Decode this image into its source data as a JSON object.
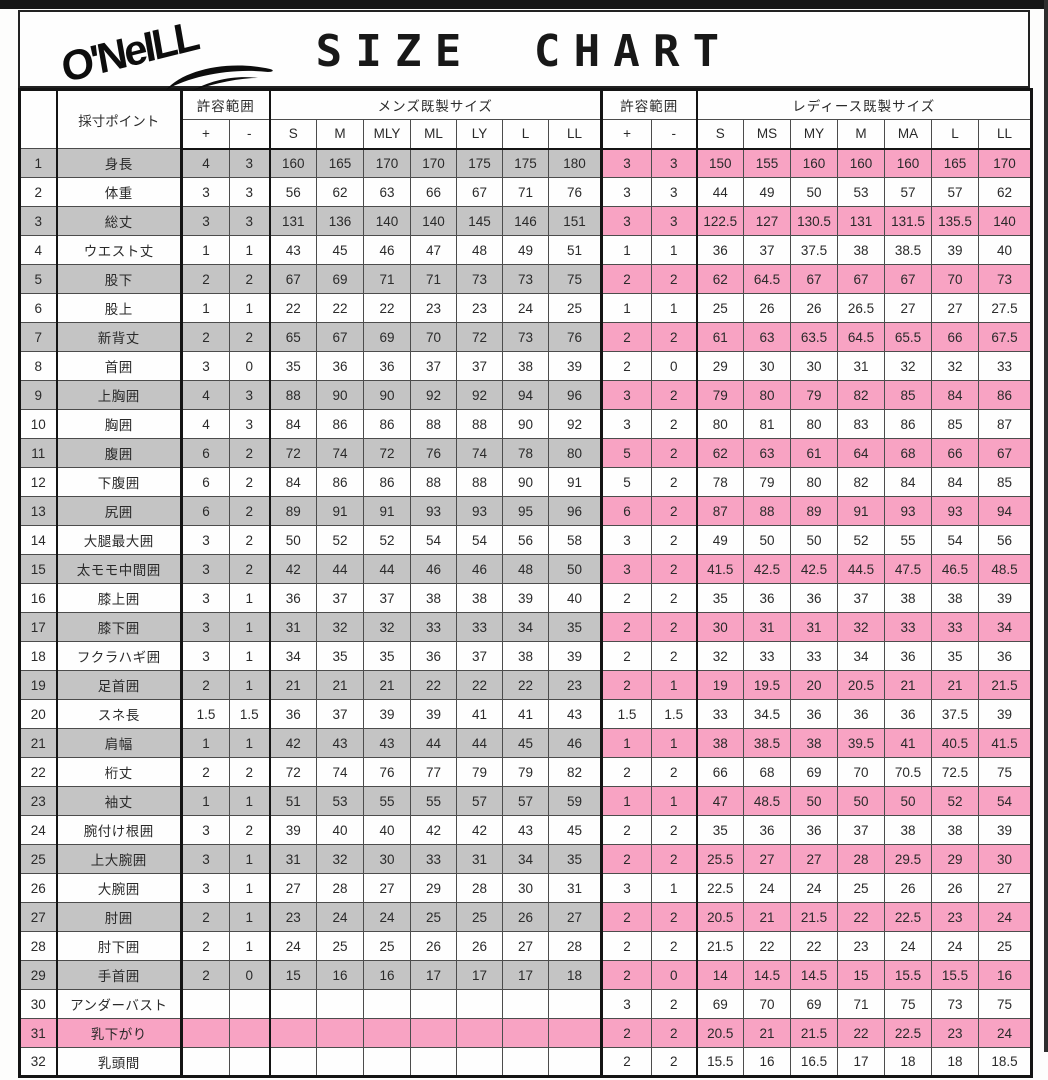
{
  "header": {
    "brand": "O'NeILL",
    "title": "SIZE CHART"
  },
  "table": {
    "headers": {
      "measure_point": "採寸ポイント",
      "tolerance": "許容範囲",
      "mens_group": "メンズ既製サイズ",
      "ladies_group": "レディース既製サイズ",
      "plus": "+",
      "minus": "-",
      "mens_sizes": [
        "S",
        "M",
        "MLY",
        "ML",
        "LY",
        "L",
        "LL"
      ],
      "ladies_sizes": [
        "S",
        "MS",
        "MY",
        "M",
        "MA",
        "L",
        "LL"
      ]
    },
    "rows": [
      {
        "no": "1",
        "name": "身長",
        "mt": [
          "4",
          "3"
        ],
        "m": [
          "160",
          "165",
          "170",
          "170",
          "175",
          "175",
          "180"
        ],
        "lt": [
          "3",
          "3"
        ],
        "l": [
          "150",
          "155",
          "160",
          "160",
          "160",
          "165",
          "170"
        ],
        "bg": "s"
      },
      {
        "no": "2",
        "name": "体重",
        "mt": [
          "3",
          "3"
        ],
        "m": [
          "56",
          "62",
          "63",
          "66",
          "67",
          "71",
          "76"
        ],
        "lt": [
          "3",
          "3"
        ],
        "l": [
          "44",
          "49",
          "50",
          "53",
          "57",
          "57",
          "62"
        ],
        "bg": "w"
      },
      {
        "no": "3",
        "name": "総丈",
        "mt": [
          "3",
          "3"
        ],
        "m": [
          "131",
          "136",
          "140",
          "140",
          "145",
          "146",
          "151"
        ],
        "lt": [
          "3",
          "3"
        ],
        "l": [
          "122.5",
          "127",
          "130.5",
          "131",
          "131.5",
          "135.5",
          "140"
        ],
        "bg": "s"
      },
      {
        "no": "4",
        "name": "ウエスト丈",
        "mt": [
          "1",
          "1"
        ],
        "m": [
          "43",
          "45",
          "46",
          "47",
          "48",
          "49",
          "51"
        ],
        "lt": [
          "1",
          "1"
        ],
        "l": [
          "36",
          "37",
          "37.5",
          "38",
          "38.5",
          "39",
          "40"
        ],
        "bg": "w"
      },
      {
        "no": "5",
        "name": "股下",
        "mt": [
          "2",
          "2"
        ],
        "m": [
          "67",
          "69",
          "71",
          "71",
          "73",
          "73",
          "75"
        ],
        "lt": [
          "2",
          "2"
        ],
        "l": [
          "62",
          "64.5",
          "67",
          "67",
          "67",
          "70",
          "73"
        ],
        "bg": "s"
      },
      {
        "no": "6",
        "name": "股上",
        "mt": [
          "1",
          "1"
        ],
        "m": [
          "22",
          "22",
          "22",
          "23",
          "23",
          "24",
          "25"
        ],
        "lt": [
          "1",
          "1"
        ],
        "l": [
          "25",
          "26",
          "26",
          "26.5",
          "27",
          "27",
          "27.5"
        ],
        "bg": "w"
      },
      {
        "no": "7",
        "name": "新背丈",
        "mt": [
          "2",
          "2"
        ],
        "m": [
          "65",
          "67",
          "69",
          "70",
          "72",
          "73",
          "76"
        ],
        "lt": [
          "2",
          "2"
        ],
        "l": [
          "61",
          "63",
          "63.5",
          "64.5",
          "65.5",
          "66",
          "67.5"
        ],
        "bg": "s"
      },
      {
        "no": "8",
        "name": "首囲",
        "mt": [
          "3",
          "0"
        ],
        "m": [
          "35",
          "36",
          "36",
          "37",
          "37",
          "38",
          "39"
        ],
        "lt": [
          "2",
          "0"
        ],
        "l": [
          "29",
          "30",
          "30",
          "31",
          "32",
          "32",
          "33"
        ],
        "bg": "w"
      },
      {
        "no": "9",
        "name": "上胸囲",
        "mt": [
          "4",
          "3"
        ],
        "m": [
          "88",
          "90",
          "90",
          "92",
          "92",
          "94",
          "96"
        ],
        "lt": [
          "3",
          "2"
        ],
        "l": [
          "79",
          "80",
          "79",
          "82",
          "85",
          "84",
          "86"
        ],
        "bg": "s"
      },
      {
        "no": "10",
        "name": "胸囲",
        "mt": [
          "4",
          "3"
        ],
        "m": [
          "84",
          "86",
          "86",
          "88",
          "88",
          "90",
          "92"
        ],
        "lt": [
          "3",
          "2"
        ],
        "l": [
          "80",
          "81",
          "80",
          "83",
          "86",
          "85",
          "87"
        ],
        "bg": "w"
      },
      {
        "no": "11",
        "name": "腹囲",
        "mt": [
          "6",
          "2"
        ],
        "m": [
          "72",
          "74",
          "72",
          "76",
          "74",
          "78",
          "80"
        ],
        "lt": [
          "5",
          "2"
        ],
        "l": [
          "62",
          "63",
          "61",
          "64",
          "68",
          "66",
          "67"
        ],
        "bg": "s"
      },
      {
        "no": "12",
        "name": "下腹囲",
        "mt": [
          "6",
          "2"
        ],
        "m": [
          "84",
          "86",
          "86",
          "88",
          "88",
          "90",
          "91"
        ],
        "lt": [
          "5",
          "2"
        ],
        "l": [
          "78",
          "79",
          "80",
          "82",
          "84",
          "84",
          "85"
        ],
        "bg": "w"
      },
      {
        "no": "13",
        "name": "尻囲",
        "mt": [
          "6",
          "2"
        ],
        "m": [
          "89",
          "91",
          "91",
          "93",
          "93",
          "95",
          "96"
        ],
        "lt": [
          "6",
          "2"
        ],
        "l": [
          "87",
          "88",
          "89",
          "91",
          "93",
          "93",
          "94"
        ],
        "bg": "s"
      },
      {
        "no": "14",
        "name": "大腿最大囲",
        "mt": [
          "3",
          "2"
        ],
        "m": [
          "50",
          "52",
          "52",
          "54",
          "54",
          "56",
          "58"
        ],
        "lt": [
          "3",
          "2"
        ],
        "l": [
          "49",
          "50",
          "50",
          "52",
          "55",
          "54",
          "56"
        ],
        "bg": "w"
      },
      {
        "no": "15",
        "name": "太モモ中間囲",
        "mt": [
          "3",
          "2"
        ],
        "m": [
          "42",
          "44",
          "44",
          "46",
          "46",
          "48",
          "50"
        ],
        "lt": [
          "3",
          "2"
        ],
        "l": [
          "41.5",
          "42.5",
          "42.5",
          "44.5",
          "47.5",
          "46.5",
          "48.5"
        ],
        "bg": "s"
      },
      {
        "no": "16",
        "name": "膝上囲",
        "mt": [
          "3",
          "1"
        ],
        "m": [
          "36",
          "37",
          "37",
          "38",
          "38",
          "39",
          "40"
        ],
        "lt": [
          "2",
          "2"
        ],
        "l": [
          "35",
          "36",
          "36",
          "37",
          "38",
          "38",
          "39"
        ],
        "bg": "w"
      },
      {
        "no": "17",
        "name": "膝下囲",
        "mt": [
          "3",
          "1"
        ],
        "m": [
          "31",
          "32",
          "32",
          "33",
          "33",
          "34",
          "35"
        ],
        "lt": [
          "2",
          "2"
        ],
        "l": [
          "30",
          "31",
          "31",
          "32",
          "33",
          "33",
          "34"
        ],
        "bg": "s"
      },
      {
        "no": "18",
        "name": "フクラハギ囲",
        "mt": [
          "3",
          "1"
        ],
        "m": [
          "34",
          "35",
          "35",
          "36",
          "37",
          "38",
          "39"
        ],
        "lt": [
          "2",
          "2"
        ],
        "l": [
          "32",
          "33",
          "33",
          "34",
          "36",
          "35",
          "36"
        ],
        "bg": "w"
      },
      {
        "no": "19",
        "name": "足首囲",
        "mt": [
          "2",
          "1"
        ],
        "m": [
          "21",
          "21",
          "21",
          "22",
          "22",
          "22",
          "23"
        ],
        "lt": [
          "2",
          "1"
        ],
        "l": [
          "19",
          "19.5",
          "20",
          "20.5",
          "21",
          "21",
          "21.5"
        ],
        "bg": "s"
      },
      {
        "no": "20",
        "name": "スネ長",
        "mt": [
          "1.5",
          "1.5"
        ],
        "m": [
          "36",
          "37",
          "39",
          "39",
          "41",
          "41",
          "43"
        ],
        "lt": [
          "1.5",
          "1.5"
        ],
        "l": [
          "33",
          "34.5",
          "36",
          "36",
          "36",
          "37.5",
          "39"
        ],
        "bg": "w"
      },
      {
        "no": "21",
        "name": "肩幅",
        "mt": [
          "1",
          "1"
        ],
        "m": [
          "42",
          "43",
          "43",
          "44",
          "44",
          "45",
          "46"
        ],
        "lt": [
          "1",
          "1"
        ],
        "l": [
          "38",
          "38.5",
          "38",
          "39.5",
          "41",
          "40.5",
          "41.5"
        ],
        "bg": "s"
      },
      {
        "no": "22",
        "name": "桁丈",
        "mt": [
          "2",
          "2"
        ],
        "m": [
          "72",
          "74",
          "76",
          "77",
          "79",
          "79",
          "82"
        ],
        "lt": [
          "2",
          "2"
        ],
        "l": [
          "66",
          "68",
          "69",
          "70",
          "70.5",
          "72.5",
          "75"
        ],
        "bg": "w"
      },
      {
        "no": "23",
        "name": "袖丈",
        "mt": [
          "1",
          "1"
        ],
        "m": [
          "51",
          "53",
          "55",
          "55",
          "57",
          "57",
          "59"
        ],
        "lt": [
          "1",
          "1"
        ],
        "l": [
          "47",
          "48.5",
          "50",
          "50",
          "50",
          "52",
          "54"
        ],
        "bg": "s"
      },
      {
        "no": "24",
        "name": "腕付け根囲",
        "mt": [
          "3",
          "2"
        ],
        "m": [
          "39",
          "40",
          "40",
          "42",
          "42",
          "43",
          "45"
        ],
        "lt": [
          "2",
          "2"
        ],
        "l": [
          "35",
          "36",
          "36",
          "37",
          "38",
          "38",
          "39"
        ],
        "bg": "w"
      },
      {
        "no": "25",
        "name": "上大腕囲",
        "mt": [
          "3",
          "1"
        ],
        "m": [
          "31",
          "32",
          "30",
          "33",
          "31",
          "34",
          "35"
        ],
        "lt": [
          "2",
          "2"
        ],
        "l": [
          "25.5",
          "27",
          "27",
          "28",
          "29.5",
          "29",
          "30"
        ],
        "bg": "s"
      },
      {
        "no": "26",
        "name": "大腕囲",
        "mt": [
          "3",
          "1"
        ],
        "m": [
          "27",
          "28",
          "27",
          "29",
          "28",
          "30",
          "31"
        ],
        "lt": [
          "3",
          "1"
        ],
        "l": [
          "22.5",
          "24",
          "24",
          "25",
          "26",
          "26",
          "27"
        ],
        "bg": "w"
      },
      {
        "no": "27",
        "name": "肘囲",
        "mt": [
          "2",
          "1"
        ],
        "m": [
          "23",
          "24",
          "24",
          "25",
          "25",
          "26",
          "27"
        ],
        "lt": [
          "2",
          "2"
        ],
        "l": [
          "20.5",
          "21",
          "21.5",
          "22",
          "22.5",
          "23",
          "24"
        ],
        "bg": "s"
      },
      {
        "no": "28",
        "name": "肘下囲",
        "mt": [
          "2",
          "1"
        ],
        "m": [
          "24",
          "25",
          "25",
          "26",
          "26",
          "27",
          "28"
        ],
        "lt": [
          "2",
          "2"
        ],
        "l": [
          "21.5",
          "22",
          "22",
          "23",
          "24",
          "24",
          "25"
        ],
        "bg": "w"
      },
      {
        "no": "29",
        "name": "手首囲",
        "mt": [
          "2",
          "0"
        ],
        "m": [
          "15",
          "16",
          "16",
          "17",
          "17",
          "17",
          "18"
        ],
        "lt": [
          "2",
          "0"
        ],
        "l": [
          "14",
          "14.5",
          "14.5",
          "15",
          "15.5",
          "15.5",
          "16"
        ],
        "bg": "s"
      },
      {
        "no": "30",
        "name": "アンダーバスト",
        "mt": [
          "",
          ""
        ],
        "m": [
          "",
          "",
          "",
          "",
          "",
          "",
          ""
        ],
        "lt": [
          "3",
          "2"
        ],
        "l": [
          "69",
          "70",
          "69",
          "71",
          "75",
          "73",
          "75"
        ],
        "bg": "w"
      },
      {
        "no": "31",
        "name": "乳下がり",
        "mt": [
          "",
          ""
        ],
        "m": [
          "",
          "",
          "",
          "",
          "",
          "",
          ""
        ],
        "lt": [
          "2",
          "2"
        ],
        "l": [
          "20.5",
          "21",
          "21.5",
          "22",
          "22.5",
          "23",
          "24"
        ],
        "bg": "p"
      },
      {
        "no": "32",
        "name": "乳頭間",
        "mt": [
          "",
          ""
        ],
        "m": [
          "",
          "",
          "",
          "",
          "",
          "",
          ""
        ],
        "lt": [
          "2",
          "2"
        ],
        "l": [
          "15.5",
          "16",
          "16.5",
          "17",
          "18",
          "18",
          "18.5"
        ],
        "bg": "w"
      }
    ]
  },
  "colors": {
    "shaded_gray": "#c4c4c4",
    "highlight_pink": "#f8a3c3",
    "top_bar": "#161616"
  }
}
